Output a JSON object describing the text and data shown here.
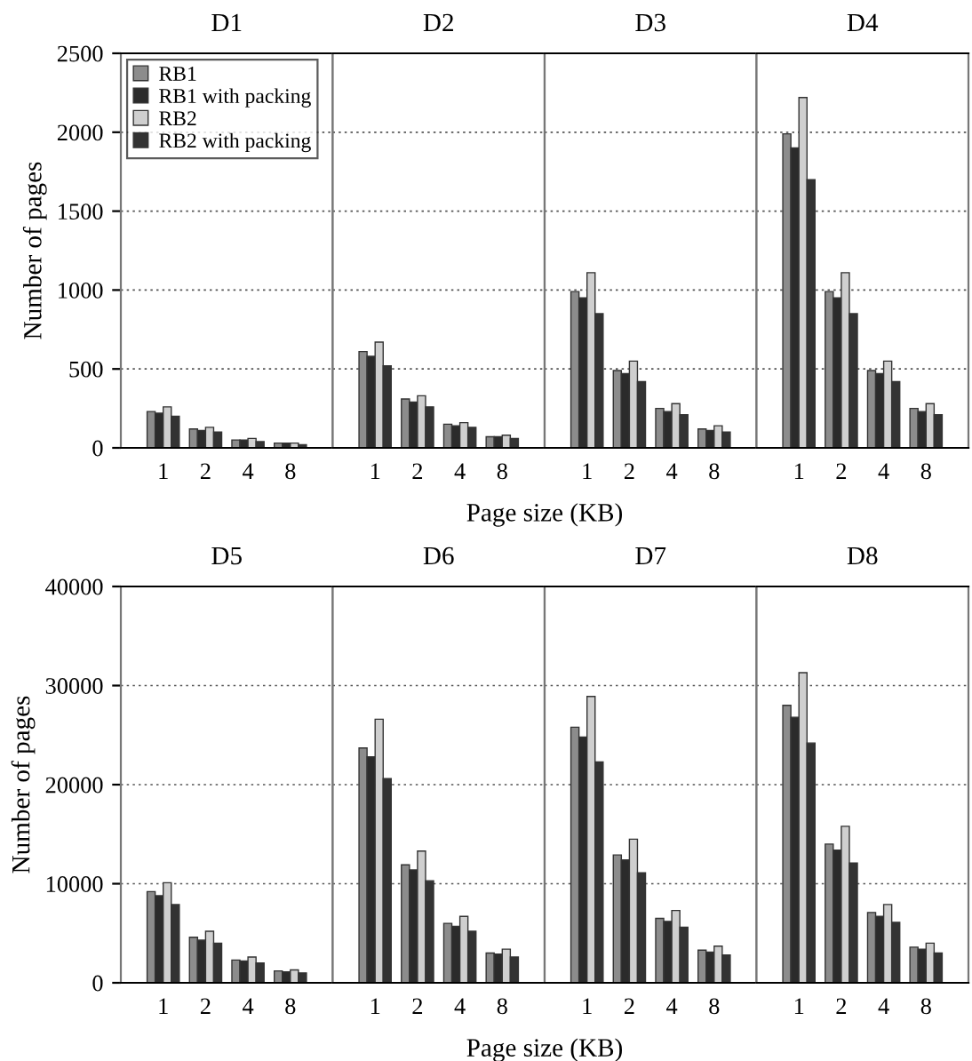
{
  "chart_data": [
    {
      "type": "bar",
      "title": "D1",
      "ylabel": "Number of pages",
      "categories": [
        "1",
        "2",
        "4",
        "8"
      ],
      "ylim": [
        0,
        2500
      ],
      "yticks": [
        0,
        500,
        1000,
        1500,
        2000,
        2500
      ],
      "grid": "y",
      "legend": "top left",
      "series": [
        {
          "name": "RB1",
          "color": "#8c8c8c",
          "values": [
            230,
            120,
            50,
            30
          ]
        },
        {
          "name": "RB1 with packing",
          "color": "#2b2b2b",
          "values": [
            220,
            110,
            50,
            30
          ]
        },
        {
          "name": "RB2",
          "color": "#cfcfcf",
          "values": [
            260,
            130,
            60,
            30
          ]
        },
        {
          "name": "RB2 with packing",
          "color": "#333333",
          "values": [
            200,
            100,
            40,
            20
          ]
        }
      ]
    },
    {
      "type": "bar",
      "title": "D2",
      "xlabel": "Page size (KB)",
      "categories": [
        "1",
        "2",
        "4",
        "8"
      ],
      "ylim": [
        0,
        2500
      ],
      "yticks": [
        0,
        500,
        1000,
        1500,
        2000,
        2500
      ],
      "grid": "y",
      "tick_labels": "x",
      "series": [
        {
          "color": "#8c8c8c",
          "values": [
            610,
            310,
            150,
            70
          ]
        },
        {
          "color": "#2b2b2b",
          "values": [
            580,
            290,
            140,
            70
          ]
        },
        {
          "color": "#cfcfcf",
          "values": [
            670,
            330,
            160,
            80
          ]
        },
        {
          "color": "#333333",
          "values": [
            520,
            260,
            130,
            60
          ]
        }
      ]
    },
    {
      "type": "bar",
      "title": "D3",
      "categories": [
        "1",
        "2",
        "4",
        "8"
      ],
      "ylim": [
        0,
        2500
      ],
      "yticks": [
        0,
        500,
        1000,
        1500,
        2000,
        2500
      ],
      "grid": "y",
      "tick_labels": "x",
      "series": [
        {
          "color": "#8c8c8c",
          "values": [
            990,
            490,
            250,
            120
          ]
        },
        {
          "color": "#2b2b2b",
          "values": [
            950,
            470,
            230,
            110
          ]
        },
        {
          "color": "#cfcfcf",
          "values": [
            1110,
            550,
            280,
            140
          ]
        },
        {
          "color": "#333333",
          "values": [
            850,
            420,
            210,
            100
          ]
        }
      ]
    },
    {
      "type": "bar",
      "title": "D4",
      "categories": [
        "1",
        "2",
        "4",
        "8"
      ],
      "ylim": [
        0,
        2500
      ],
      "yticks": [
        0,
        500,
        1000,
        1500,
        2000,
        2500
      ],
      "grid": "y",
      "tick_labels": "x",
      "series": [
        {
          "color": "#8c8c8c",
          "values": [
            1990,
            990,
            490,
            250
          ]
        },
        {
          "color": "#2b2b2b",
          "values": [
            1900,
            950,
            470,
            230
          ]
        },
        {
          "color": "#cfcfcf",
          "values": [
            2220,
            1110,
            550,
            280
          ]
        },
        {
          "color": "#333333",
          "values": [
            1700,
            850,
            420,
            210
          ]
        }
      ]
    },
    {
      "type": "bar",
      "title": "D5",
      "ylabel": "Number of pages",
      "categories": [
        "1",
        "2",
        "4",
        "8"
      ],
      "ylim": [
        0,
        40000
      ],
      "yticks": [
        0,
        10000,
        20000,
        30000,
        40000
      ],
      "grid": "y",
      "series": [
        {
          "color": "#8c8c8c",
          "values": [
            9200,
            4600,
            2300,
            1200
          ]
        },
        {
          "color": "#2b2b2b",
          "values": [
            8800,
            4300,
            2200,
            1100
          ]
        },
        {
          "color": "#cfcfcf",
          "values": [
            10100,
            5200,
            2600,
            1300
          ]
        },
        {
          "color": "#333333",
          "values": [
            7900,
            4000,
            2000,
            1000
          ]
        }
      ]
    },
    {
      "type": "bar",
      "title": "D6",
      "xlabel": "Page size (KB)",
      "categories": [
        "1",
        "2",
        "4",
        "8"
      ],
      "ylim": [
        0,
        40000
      ],
      "yticks": [
        0,
        10000,
        20000,
        30000,
        40000
      ],
      "grid": "y",
      "tick_labels": "x",
      "series": [
        {
          "color": "#8c8c8c",
          "values": [
            23700,
            11900,
            6000,
            3000
          ]
        },
        {
          "color": "#2b2b2b",
          "values": [
            22800,
            11400,
            5700,
            2900
          ]
        },
        {
          "color": "#cfcfcf",
          "values": [
            26600,
            13300,
            6700,
            3400
          ]
        },
        {
          "color": "#333333",
          "values": [
            20600,
            10300,
            5200,
            2600
          ]
        }
      ]
    },
    {
      "type": "bar",
      "title": "D7",
      "categories": [
        "1",
        "2",
        "4",
        "8"
      ],
      "ylim": [
        0,
        40000
      ],
      "yticks": [
        0,
        10000,
        20000,
        30000,
        40000
      ],
      "grid": "y",
      "tick_labels": "x",
      "series": [
        {
          "color": "#8c8c8c",
          "values": [
            25800,
            12900,
            6500,
            3300
          ]
        },
        {
          "color": "#2b2b2b",
          "values": [
            24800,
            12400,
            6200,
            3100
          ]
        },
        {
          "color": "#cfcfcf",
          "values": [
            28900,
            14500,
            7300,
            3700
          ]
        },
        {
          "color": "#333333",
          "values": [
            22300,
            11100,
            5600,
            2800
          ]
        }
      ]
    },
    {
      "type": "bar",
      "title": "D8",
      "categories": [
        "1",
        "2",
        "4",
        "8"
      ],
      "ylim": [
        0,
        40000
      ],
      "yticks": [
        0,
        10000,
        20000,
        30000,
        40000
      ],
      "grid": "y",
      "tick_labels": "x",
      "series": [
        {
          "color": "#8c8c8c",
          "values": [
            28000,
            14000,
            7100,
            3600
          ]
        },
        {
          "color": "#2b2b2b",
          "values": [
            26800,
            13400,
            6700,
            3400
          ]
        },
        {
          "color": "#cfcfcf",
          "values": [
            31300,
            15800,
            7900,
            4000
          ]
        },
        {
          "color": "#333333",
          "values": [
            24200,
            12100,
            6100,
            3000
          ]
        }
      ]
    }
  ]
}
